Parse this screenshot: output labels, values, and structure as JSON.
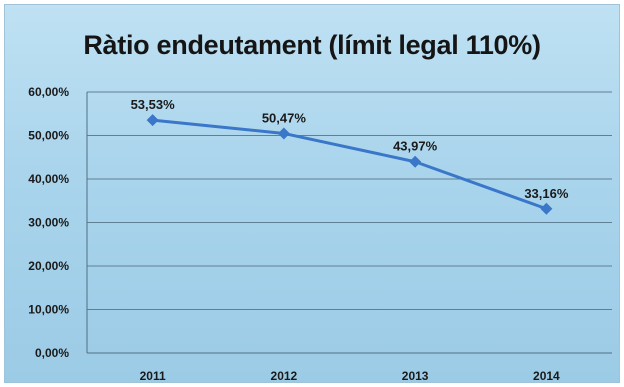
{
  "chart_data": {
    "type": "line",
    "title": "Ràtio endeutament (límit legal 110%)",
    "categories": [
      "2011",
      "2012",
      "2013",
      "2014"
    ],
    "series": [
      {
        "values": [
          53.53,
          50.47,
          43.97,
          33.16
        ],
        "labels": [
          "53,53%",
          "50,47%",
          "43,97%",
          "33,16%"
        ]
      }
    ],
    "yticks": [
      "0,00%",
      "10,00%",
      "20,00%",
      "30,00%",
      "40,00%",
      "50,00%",
      "60,00%"
    ],
    "ylim": [
      0,
      60
    ],
    "grid": true,
    "line_color": "#3a77c9"
  }
}
